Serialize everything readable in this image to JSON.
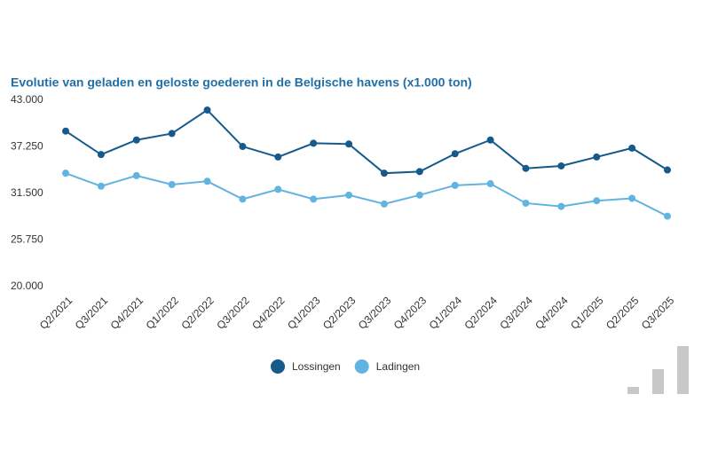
{
  "chart_data": {
    "type": "line",
    "title": "Evolutie van geladen en geloste goederen in de Belgische havens (x1.000 ton)",
    "categories": [
      "Q2/2021",
      "Q3/2021",
      "Q4/2021",
      "Q1/2022",
      "Q2/2022",
      "Q3/2022",
      "Q4/2022",
      "Q1/2023",
      "Q2/2023",
      "Q3/2023",
      "Q4/2023",
      "Q1/2024",
      "Q2/2024",
      "Q3/2024",
      "Q4/2024",
      "Q1/2025",
      "Q2/2025",
      "Q3/2025"
    ],
    "series": [
      {
        "name": "Lossingen",
        "color": "#155a8a",
        "values": [
          39200,
          36300,
          38100,
          38900,
          41800,
          37300,
          36000,
          37700,
          37600,
          34000,
          34200,
          36400,
          38100,
          34600,
          34900,
          36000,
          37100,
          34400
        ]
      },
      {
        "name": "Ladingen",
        "color": "#62b3e0",
        "values": [
          34000,
          32400,
          33700,
          32600,
          33000,
          30800,
          32000,
          30800,
          31300,
          30200,
          31300,
          32500,
          32700,
          30300,
          29900,
          30600,
          30900,
          28700
        ]
      }
    ],
    "ylim": [
      20000,
      43000
    ],
    "yticks": [
      {
        "value": 20000,
        "label": "20.000"
      },
      {
        "value": 25750,
        "label": "25.750"
      },
      {
        "value": 31500,
        "label": "31.500"
      },
      {
        "value": 37250,
        "label": "37.250"
      },
      {
        "value": 43000,
        "label": "43.000"
      }
    ],
    "grid": false,
    "legend": "bottom"
  }
}
